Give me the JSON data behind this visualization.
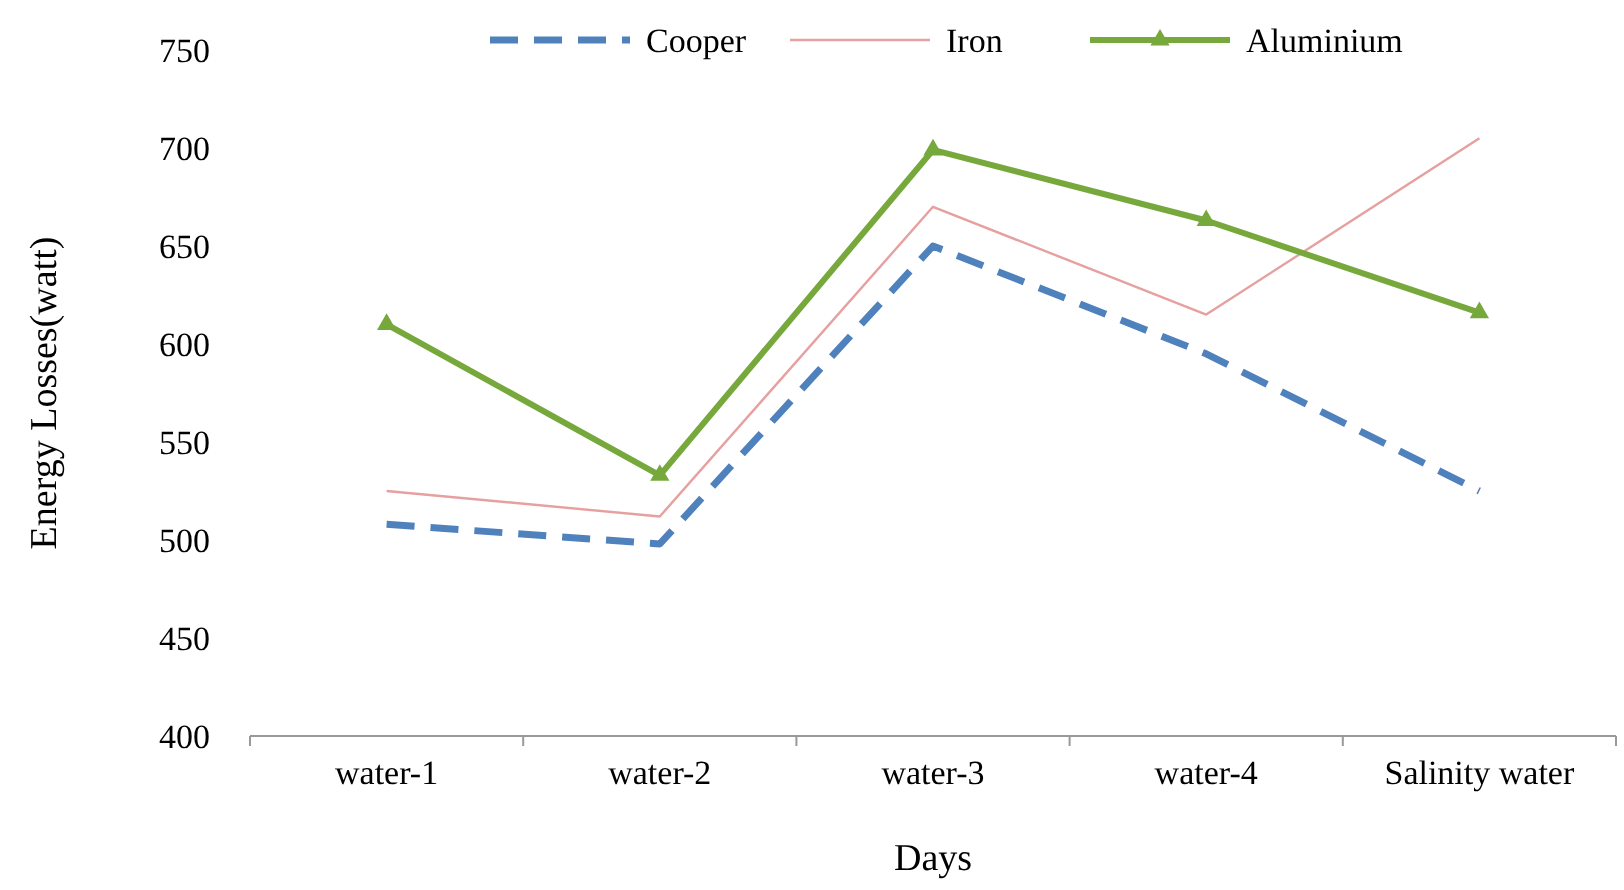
{
  "chart_data": {
    "type": "line",
    "xlabel": "Days",
    "ylabel": "Energy Losses(watt)",
    "categories": [
      "water-1",
      "water-2",
      "water-3",
      "water-4",
      "Salinity water"
    ],
    "series": [
      {
        "name": "Cooper",
        "color": "#4f81bd",
        "line_style": "dashed",
        "marker": "none",
        "values": [
          508,
          498,
          650,
          595,
          525
        ]
      },
      {
        "name": "Iron",
        "color": "#e6a0a0",
        "line_style": "solid",
        "marker": "none",
        "values": [
          525,
          512,
          670,
          615,
          705
        ]
      },
      {
        "name": "Aluminium",
        "color": "#77a83c",
        "line_style": "solid",
        "marker": "triangle",
        "values": [
          610,
          533,
          699,
          663,
          616
        ]
      }
    ],
    "ylim": [
      400,
      750
    ],
    "yticks": [
      400,
      450,
      500,
      550,
      600,
      650,
      700,
      750
    ],
    "grid": false,
    "legend": "top"
  }
}
